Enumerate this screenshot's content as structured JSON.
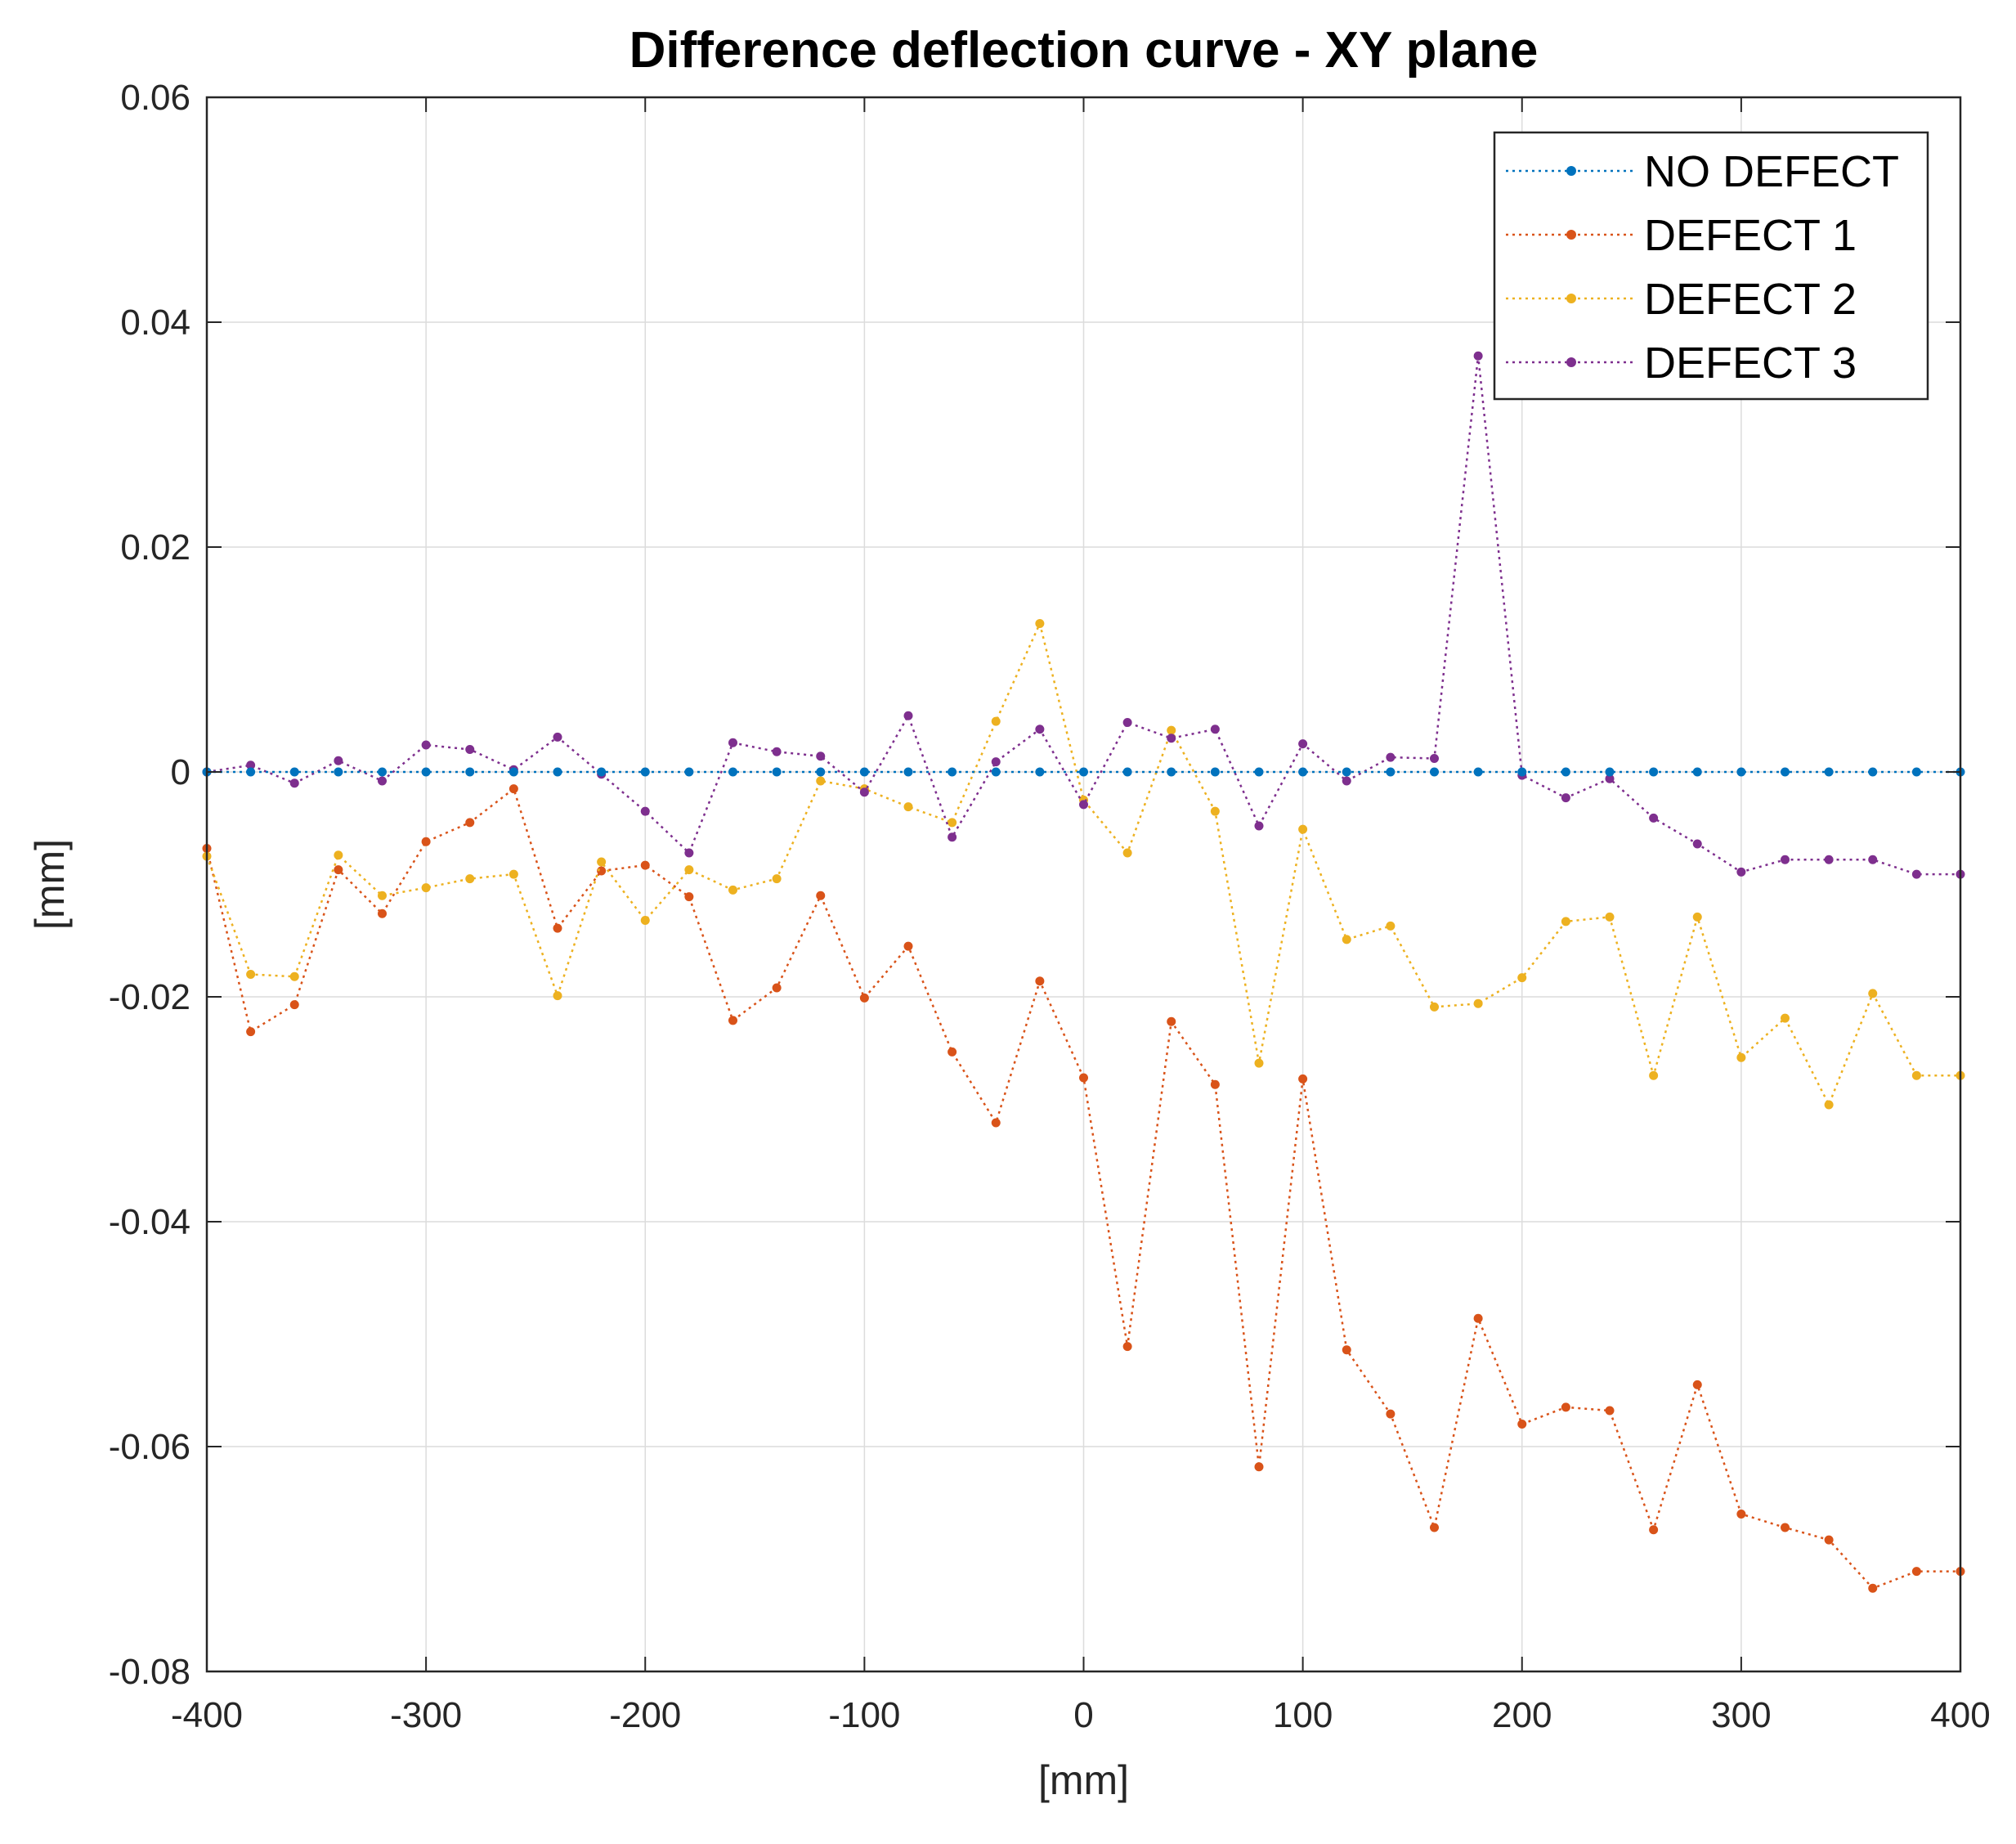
{
  "chart_data": {
    "type": "line",
    "title": "Difference deflection curve - XY plane",
    "xlabel": "[mm]",
    "ylabel": "[mm]",
    "xlim": [
      -400,
      400
    ],
    "ylim": [
      -0.08,
      0.06
    ],
    "xticks": [
      -400,
      -300,
      -200,
      -100,
      0,
      100,
      200,
      300,
      400
    ],
    "xtick_labels": [
      "-400",
      "-300",
      "-200",
      "-100",
      "0",
      "100",
      "200",
      "300",
      "400"
    ],
    "yticks": [
      -0.08,
      -0.06,
      -0.04,
      -0.02,
      0,
      0.02,
      0.04,
      0.06
    ],
    "ytick_labels": [
      "-0.08",
      "-0.06",
      "-0.04",
      "-0.02",
      "0",
      "0.02",
      "0.04",
      "0.06"
    ],
    "grid": true,
    "legend_position": "top-right",
    "x": [
      -400,
      -380,
      -360,
      -340,
      -320,
      -300,
      -280,
      -260,
      -240,
      -220,
      -200,
      -180,
      -160,
      -140,
      -120,
      -100,
      -80,
      -60,
      -40,
      -20,
      0,
      20,
      40,
      60,
      80,
      100,
      120,
      140,
      160,
      180,
      200,
      220,
      240,
      260,
      280,
      300,
      320,
      340,
      360,
      380,
      400
    ],
    "series": [
      {
        "name": "NO DEFECT",
        "color": "#0072BD",
        "values": [
          0,
          0,
          0,
          0,
          0,
          0,
          0,
          0,
          0,
          0,
          0,
          0,
          0,
          0,
          0,
          0,
          0,
          0,
          0,
          0,
          0,
          0,
          0,
          0,
          0,
          0,
          0,
          0,
          0,
          0,
          0,
          0,
          0,
          0,
          0,
          0,
          0,
          0,
          0,
          0,
          0
        ]
      },
      {
        "name": "DEFECT 1",
        "color": "#D95319",
        "values": [
          -0.0068,
          -0.0231,
          -0.0207,
          -0.0087,
          -0.0126,
          -0.0062,
          -0.0045,
          -0.0015,
          -0.0139,
          -0.0088,
          -0.0083,
          -0.0111,
          -0.0221,
          -0.0192,
          -0.011,
          -0.0201,
          -0.0155,
          -0.0249,
          -0.0312,
          -0.0186,
          -0.0272,
          -0.0511,
          -0.0222,
          -0.0278,
          -0.0618,
          -0.0273,
          -0.0514,
          -0.0571,
          -0.0672,
          -0.0486,
          -0.058,
          -0.0565,
          -0.0568,
          -0.0674,
          -0.0545,
          -0.066,
          -0.0672,
          -0.0683,
          -0.0726,
          -0.0711,
          -0.0711
        ]
      },
      {
        "name": "DEFECT 2",
        "color": "#EDB120",
        "values": [
          -0.0075,
          -0.018,
          -0.0182,
          -0.0074,
          -0.011,
          -0.0103,
          -0.0095,
          -0.0091,
          -0.0199,
          -0.008,
          -0.0132,
          -0.0087,
          -0.0105,
          -0.0095,
          -0.0008,
          -0.0015,
          -0.0031,
          -0.0045,
          0.0045,
          0.0132,
          -0.0025,
          -0.0072,
          0.0037,
          -0.0035,
          -0.0259,
          -0.0051,
          -0.0149,
          -0.0137,
          -0.0209,
          -0.0206,
          -0.0183,
          -0.0133,
          -0.0129,
          -0.027,
          -0.0129,
          -0.0254,
          -0.0219,
          -0.0296,
          -0.0197,
          -0.027,
          -0.027
        ]
      },
      {
        "name": "DEFECT 3",
        "color": "#7E2F8E",
        "values": [
          0.0,
          0.0006,
          -0.001,
          0.001,
          -0.0008,
          0.0024,
          0.002,
          0.0002,
          0.0031,
          -0.0002,
          -0.0035,
          -0.0072,
          0.0026,
          0.0018,
          0.0014,
          -0.0018,
          0.005,
          -0.0058,
          0.0009,
          0.0038,
          -0.0029,
          0.0044,
          0.003,
          0.0038,
          -0.0048,
          0.0025,
          -0.0008,
          0.0013,
          0.0012,
          0.037,
          -0.0003,
          -0.0023,
          -0.0006,
          -0.0041,
          -0.0064,
          -0.0089,
          -0.0078,
          -0.0078,
          -0.0078,
          -0.0091,
          -0.0091
        ]
      }
    ]
  }
}
